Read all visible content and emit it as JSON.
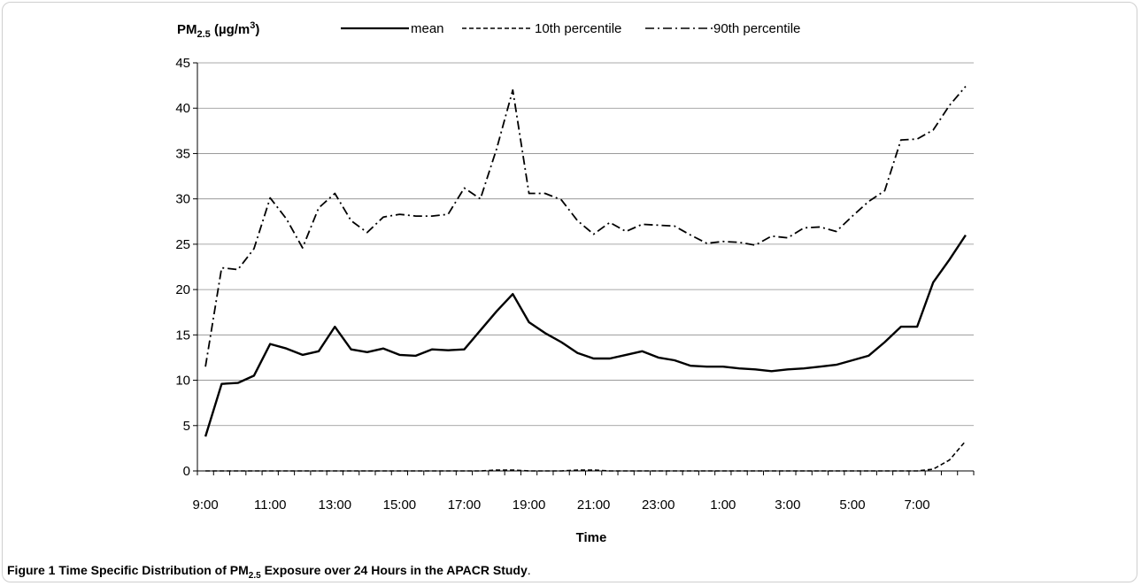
{
  "chart_data": {
    "type": "line",
    "ylabel_main": "PM",
    "ylabel_sub": "2.5",
    "ylabel_unit_pre": " (µg/m",
    "ylabel_unit_sup": "3",
    "ylabel_unit_post": ")",
    "xlabel": "Time",
    "ylim": [
      0,
      45
    ],
    "yticks": [
      "0",
      "5",
      "10",
      "15",
      "20",
      "25",
      "30",
      "35",
      "40",
      "45"
    ],
    "xtick_labels": [
      "9:00",
      "11:00",
      "13:00",
      "15:00",
      "17:00",
      "19:00",
      "21:00",
      "23:00",
      "1:00",
      "3:00",
      "5:00",
      "7:00"
    ],
    "n_points": 48,
    "grid": "horizontal",
    "legend_position": "top",
    "series": [
      {
        "name": "mean",
        "style": "solid",
        "values": [
          3.8,
          9.6,
          9.7,
          10.5,
          14.0,
          13.5,
          12.8,
          13.2,
          15.9,
          13.4,
          13.1,
          13.5,
          12.8,
          12.7,
          13.4,
          13.3,
          13.4,
          15.5,
          17.6,
          19.5,
          16.4,
          15.2,
          14.2,
          13.0,
          12.4,
          12.4,
          12.8,
          13.2,
          12.5,
          12.2,
          11.6,
          11.5,
          11.5,
          11.3,
          11.2,
          11.0,
          11.2,
          11.3,
          11.5,
          11.7,
          12.2,
          12.7,
          14.2,
          15.9,
          15.9,
          20.8,
          23.3,
          26.0
        ]
      },
      {
        "name": "10th percentile",
        "style": "dashed",
        "values": [
          0.0,
          0.0,
          0.0,
          0.0,
          0.0,
          0.0,
          0.0,
          0.0,
          0.0,
          0.0,
          0.0,
          0.0,
          0.0,
          0.0,
          0.0,
          0.0,
          0.0,
          0.0,
          0.1,
          0.1,
          0.0,
          0.0,
          0.0,
          0.1,
          0.1,
          0.0,
          0.0,
          0.0,
          0.0,
          0.0,
          0.0,
          0.0,
          0.0,
          0.0,
          0.0,
          0.0,
          0.0,
          0.0,
          0.0,
          0.0,
          0.0,
          0.0,
          0.0,
          0.0,
          0.0,
          0.2,
          1.2,
          3.3
        ]
      },
      {
        "name": "90th percentile",
        "style": "dashdot",
        "values": [
          11.5,
          22.4,
          22.2,
          24.5,
          30.1,
          27.8,
          24.6,
          29.0,
          30.6,
          27.6,
          26.3,
          28.0,
          28.3,
          28.1,
          28.1,
          28.3,
          31.2,
          30.0,
          35.5,
          42.0,
          30.6,
          30.6,
          29.9,
          27.6,
          26.1,
          27.4,
          26.4,
          27.2,
          27.1,
          27.0,
          26.0,
          25.1,
          25.3,
          25.2,
          24.9,
          25.9,
          25.7,
          26.8,
          26.9,
          26.4,
          28.1,
          29.7,
          30.9,
          36.5,
          36.6,
          37.6,
          40.3,
          42.4
        ]
      }
    ]
  },
  "caption": {
    "label": "Figure 1",
    "text_pre": " Time Specific Distribution of PM",
    "text_sub": "2.5",
    "text_post": " Exposure over 24 Hours in the APACR Study",
    "period": "."
  }
}
